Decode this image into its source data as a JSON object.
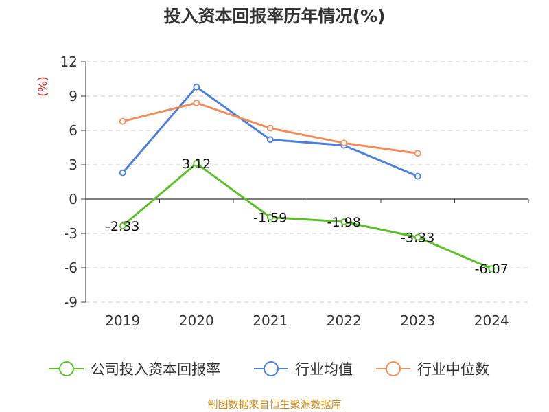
{
  "title": "投入资本回报率历年情况(%)",
  "source": "制图数据来自恒生聚源数据库",
  "chart_data": {
    "type": "line",
    "title": "投入资本回报率历年情况(%)",
    "ylabel": "(%)",
    "xlabel": "",
    "ylim": [
      -9,
      12
    ],
    "yticks": [
      "12",
      "9",
      "6",
      "3",
      "0",
      "-3",
      "-6",
      "-9"
    ],
    "categories": [
      "2019",
      "2020",
      "2021",
      "2022",
      "2023",
      "2024"
    ],
    "grid": true,
    "legend_position": "bottom",
    "series": [
      {
        "name": "公司投入资本回报率",
        "color": "#5cbf2a",
        "values": [
          -2.33,
          3.12,
          -1.59,
          -1.98,
          -3.33,
          -6.07
        ],
        "labels": [
          "-2.33",
          "3.12",
          "-1.59",
          "-1.98",
          "-3.33",
          "-6.07"
        ]
      },
      {
        "name": "行业均值",
        "color": "#4a7fdc",
        "values": [
          2.3,
          9.8,
          5.2,
          4.7,
          2.0,
          null
        ]
      },
      {
        "name": "行业中位数",
        "color": "#f28c5a",
        "values": [
          6.8,
          8.4,
          6.2,
          4.9,
          4.0,
          null
        ]
      }
    ]
  }
}
